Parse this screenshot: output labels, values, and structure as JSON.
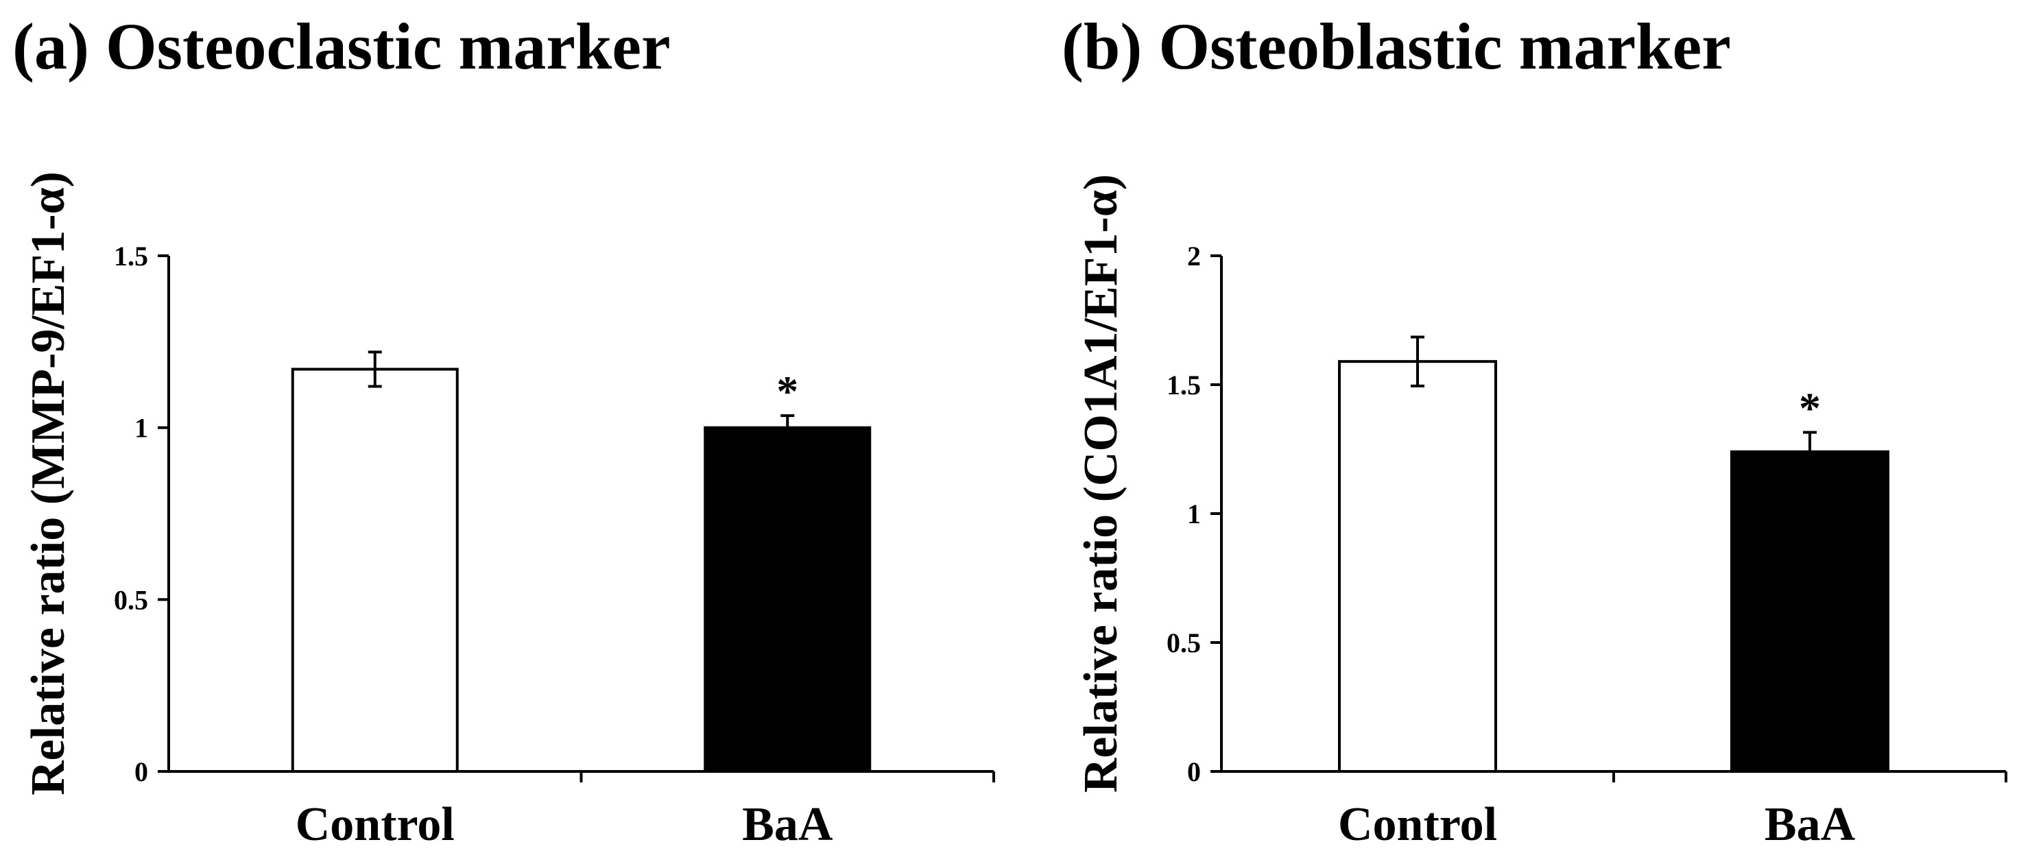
{
  "chart_data": [
    {
      "type": "bar",
      "panel": "(a)",
      "title": "(a) Osteoclastic marker",
      "xlabel": "",
      "ylabel": "Relative ratio (MMP-9/EF1-α)",
      "categories": [
        "Control",
        "BaA"
      ],
      "values": [
        1.17,
        1.0
      ],
      "errors": [
        0.05,
        0.035
      ],
      "bar_colors": [
        "#ffffff",
        "#000000"
      ],
      "significance": [
        "",
        "*"
      ],
      "ylim": [
        0,
        1.5
      ],
      "yticks": [
        0,
        0.5,
        1,
        1.5
      ],
      "ytick_labels": [
        "0",
        "0.5",
        "1",
        "1.5"
      ],
      "grid": false
    },
    {
      "type": "bar",
      "panel": "(b)",
      "title": "(b) Osteoblastic marker",
      "xlabel": "",
      "ylabel": "Relative ratio (CO1A1/EF1-α)",
      "categories": [
        "Control",
        "BaA"
      ],
      "values": [
        1.59,
        1.24
      ],
      "errors": [
        0.095,
        0.075
      ],
      "bar_colors": [
        "#ffffff",
        "#000000"
      ],
      "significance": [
        "",
        "*"
      ],
      "ylim": [
        0,
        2
      ],
      "yticks": [
        0,
        0.5,
        1,
        1.5,
        2
      ],
      "ytick_labels": [
        "0",
        "0.5",
        "1",
        "1.5",
        "2"
      ],
      "grid": false
    }
  ]
}
